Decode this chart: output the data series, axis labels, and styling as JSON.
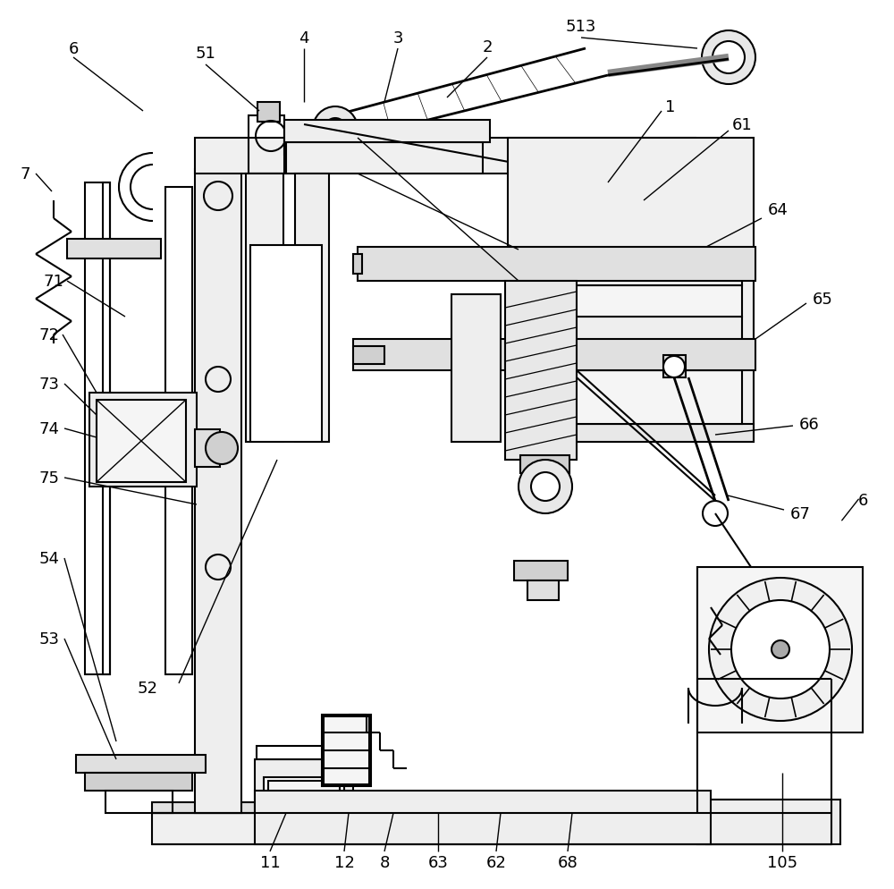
{
  "bg_color": "#ffffff",
  "lc": "#000000",
  "lw": 1.5,
  "thin": 0.8,
  "thick": 2.5
}
